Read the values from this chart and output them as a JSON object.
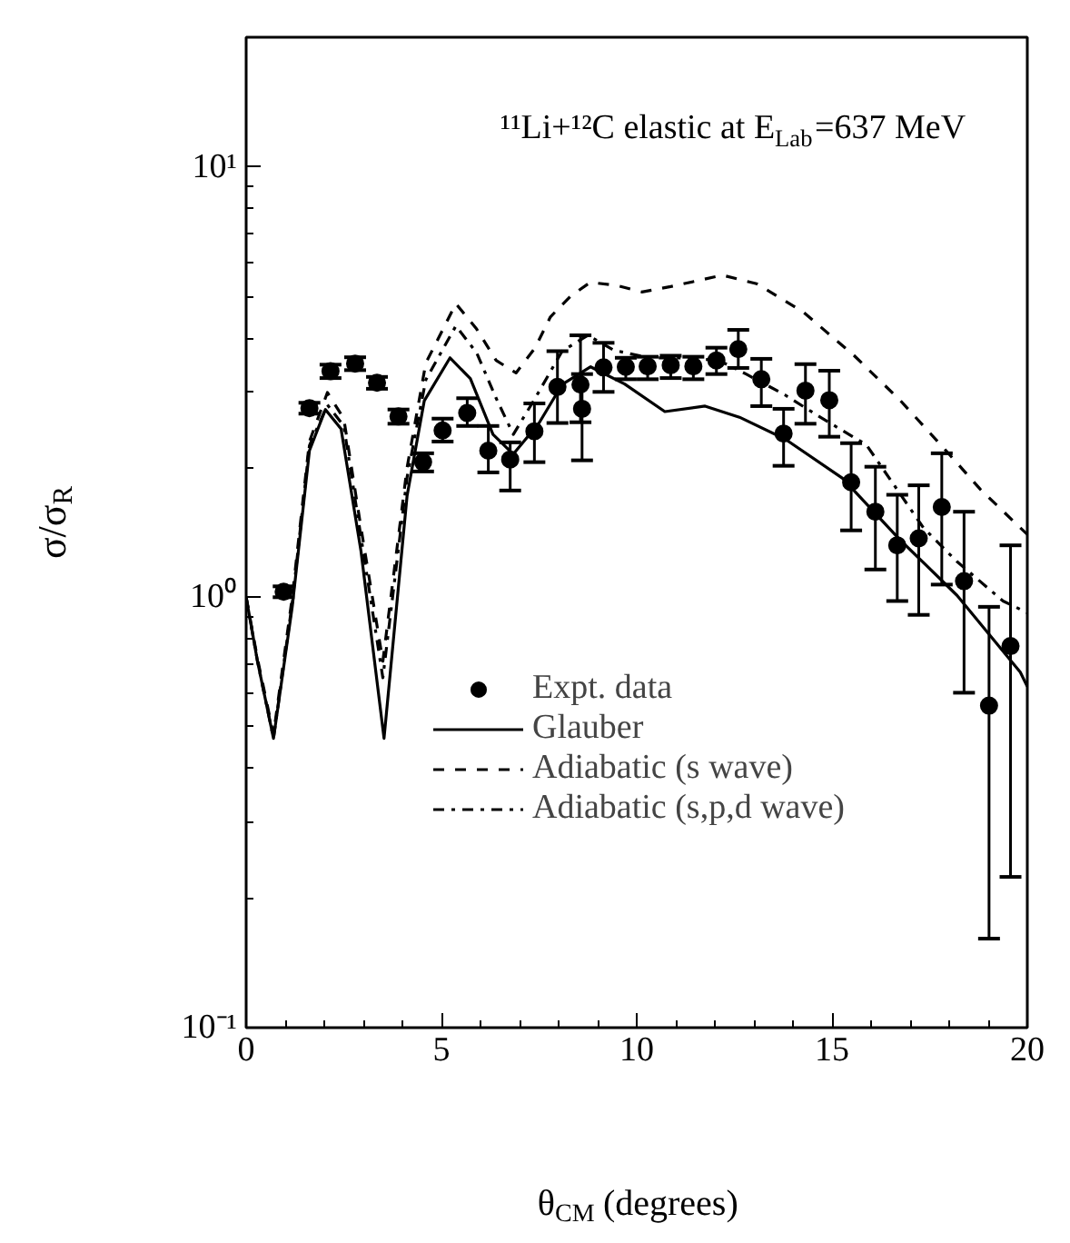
{
  "chart_data": {
    "type": "line",
    "annotations": [
      {
        "text": "¹¹Li+¹²C elastic at E$_{Lab}$=637 MeV"
      }
    ],
    "xlabel": "θ$_{CM}$ (degrees)",
    "ylabel": "σ/σ$_{R}$",
    "log": "y",
    "xlim": [
      0,
      20
    ],
    "ylim": [
      0.1,
      20
    ],
    "xticks": [
      0,
      5,
      10,
      15,
      20
    ],
    "yticks": [
      {
        "value": 0.1,
        "label": "10⁻¹"
      },
      {
        "value": 1,
        "label": "10⁰"
      },
      {
        "value": 10,
        "label": "10¹"
      }
    ],
    "grid": false,
    "legend": "center",
    "series": [
      {
        "name": "Expt. data",
        "type": "scatter",
        "marker": "circle",
        "color": "#000000",
        "x": [
          0.96,
          1.62,
          2.16,
          2.79,
          3.35,
          3.9,
          4.53,
          5.03,
          5.66,
          6.2,
          6.76,
          7.38,
          7.97,
          8.56,
          8.6,
          9.15,
          9.72,
          10.28,
          10.87,
          11.45,
          12.04,
          12.6,
          13.19,
          13.76,
          14.32,
          14.93,
          15.49,
          16.11,
          16.67,
          17.22,
          17.81,
          18.38,
          19.02,
          19.57
        ],
        "values": [
          1.03,
          2.75,
          3.35,
          3.49,
          3.15,
          2.63,
          2.06,
          2.44,
          2.68,
          2.19,
          2.09,
          2.43,
          3.08,
          3.12,
          2.74,
          3.42,
          3.43,
          3.44,
          3.46,
          3.44,
          3.55,
          3.77,
          3.21,
          2.4,
          3.02,
          2.87,
          1.85,
          1.58,
          1.32,
          1.37,
          1.62,
          1.09,
          0.56,
          0.77
        ],
        "errors": [
          [
            1.0,
            1.06
          ],
          [
            2.67,
            2.83
          ],
          [
            3.23,
            3.47
          ],
          [
            3.37,
            3.61
          ],
          [
            3.05,
            3.25
          ],
          [
            2.53,
            2.73
          ],
          [
            1.96,
            2.16
          ],
          [
            2.3,
            2.6
          ],
          [
            2.5,
            2.9
          ],
          [
            1.95,
            2.5
          ],
          [
            1.77,
            2.29
          ],
          [
            2.06,
            2.82
          ],
          [
            2.54,
            3.73
          ],
          [
            2.55,
            4.06
          ],
          [
            2.08,
            3.3
          ],
          [
            3.0,
            3.9
          ],
          [
            3.21,
            3.6
          ],
          [
            3.21,
            3.62
          ],
          [
            3.23,
            3.64
          ],
          [
            3.21,
            3.62
          ],
          [
            3.3,
            3.8
          ],
          [
            3.41,
            4.18
          ],
          [
            2.78,
            3.58
          ],
          [
            2.02,
            2.74
          ],
          [
            2.53,
            3.48
          ],
          [
            2.36,
            3.36
          ],
          [
            1.43,
            2.28
          ],
          [
            1.16,
            2.01
          ],
          [
            0.98,
            1.73
          ],
          [
            0.91,
            1.82
          ],
          [
            1.07,
            2.16
          ],
          [
            0.6,
            1.58
          ],
          [
            0.161,
            0.95
          ],
          [
            0.224,
            1.32
          ]
        ]
      },
      {
        "name": "Glauber",
        "line_style": "solid",
        "color": "#000000",
        "x": [
          0,
          0.29,
          0.7,
          1.18,
          1.62,
          2.03,
          2.43,
          2.94,
          3.53,
          4.12,
          4.56,
          5.22,
          5.74,
          6.32,
          6.84,
          7.5,
          8.09,
          8.82,
          9.69,
          10.72,
          11.75,
          12.63,
          13.8,
          15.27,
          16.74,
          18.2,
          19.82,
          20
        ],
        "values": [
          1.0,
          0.71,
          0.47,
          0.95,
          2.19,
          2.73,
          2.46,
          1.28,
          0.47,
          1.72,
          2.86,
          3.6,
          3.22,
          2.39,
          2.15,
          2.54,
          3.12,
          3.43,
          3.13,
          2.7,
          2.78,
          2.62,
          2.33,
          1.89,
          1.36,
          1.01,
          0.67,
          0.62
        ]
      },
      {
        "name": "Adiabatic (s wave)",
        "line_style": "dashed",
        "color": "#000000",
        "x": [
          0,
          0.29,
          0.7,
          1.18,
          1.62,
          2.08,
          2.5,
          2.94,
          3.5,
          4.12,
          4.6,
          5.37,
          5.9,
          6.4,
          6.91,
          7.4,
          7.79,
          8.3,
          8.81,
          9.5,
          10.13,
          10.87,
          11.6,
          12.19,
          13.07,
          14.25,
          15.57,
          16.74,
          17.92,
          18.8,
          19.82,
          20
        ],
        "values": [
          1.0,
          0.72,
          0.48,
          1.0,
          2.3,
          2.99,
          2.6,
          1.45,
          0.71,
          2.0,
          3.5,
          4.81,
          4.2,
          3.55,
          3.32,
          3.8,
          4.48,
          5.0,
          5.39,
          5.3,
          5.12,
          5.27,
          5.45,
          5.6,
          5.35,
          4.61,
          3.64,
          2.87,
          2.19,
          1.78,
          1.45,
          1.4
        ]
      },
      {
        "name": "Adiabatic (s,p,d wave)",
        "line_style": "dashdot",
        "color": "#000000",
        "x": [
          0,
          0.29,
          0.7,
          1.18,
          1.62,
          2.08,
          2.5,
          2.94,
          3.5,
          4.12,
          4.6,
          5.37,
          5.9,
          6.4,
          6.84,
          7.4,
          8.09,
          8.75,
          9.41,
          10.3,
          11.2,
          12.1,
          12.8,
          13.8,
          14.7,
          15.88,
          17.34,
          18.2,
          19.38,
          20
        ],
        "values": [
          1.0,
          0.71,
          0.47,
          0.97,
          2.25,
          2.8,
          2.5,
          1.38,
          0.65,
          1.9,
          3.2,
          4.27,
          3.7,
          2.9,
          2.39,
          2.9,
          3.73,
          4.06,
          3.75,
          3.6,
          3.6,
          3.55,
          3.3,
          2.95,
          2.62,
          2.26,
          1.45,
          1.21,
          0.98,
          0.92
        ]
      }
    ]
  }
}
